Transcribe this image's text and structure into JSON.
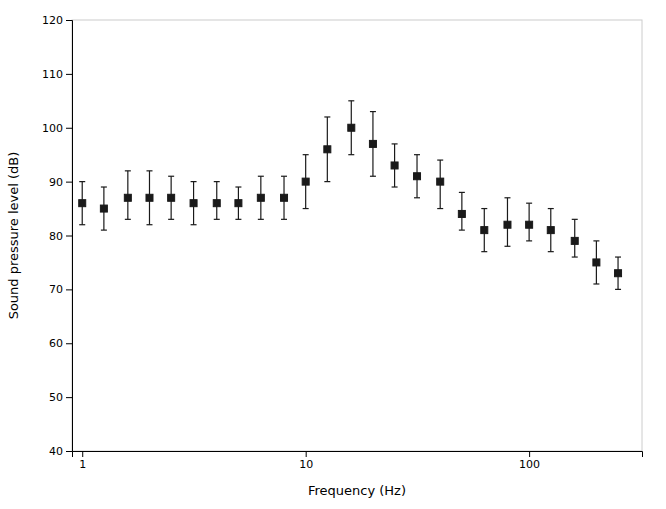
{
  "chart_data": {
    "type": "scatter",
    "xlabel": "Frequency (Hz)",
    "ylabel": "Sound pressure level (dB)",
    "x": [
      1,
      1.25,
      1.6,
      2,
      2.5,
      3.15,
      4,
      5,
      6.3,
      8,
      10,
      12.5,
      16,
      20,
      25,
      31.5,
      40,
      50,
      63,
      80,
      100,
      125,
      160,
      200,
      250
    ],
    "values": [
      86,
      85,
      87,
      87,
      87,
      86,
      86,
      86,
      87,
      87,
      90,
      96,
      100,
      97,
      93,
      91,
      90,
      84,
      81,
      82,
      82,
      81,
      79,
      75,
      73
    ],
    "yerr_lower": [
      4,
      4,
      4,
      5,
      4,
      4,
      3,
      3,
      4,
      4,
      5,
      6,
      5,
      6,
      4,
      4,
      5,
      3,
      4,
      4,
      3,
      4,
      3,
      4,
      3
    ],
    "yerr_upper": [
      4,
      4,
      5,
      5,
      4,
      4,
      4,
      3,
      4,
      4,
      5,
      6,
      5,
      6,
      4,
      4,
      4,
      4,
      4,
      5,
      4,
      4,
      4,
      4,
      3
    ],
    "color": "#1a1a1a",
    "marker": "square",
    "log": "x",
    "xlim": [
      0.9,
      320
    ],
    "xticks": [
      1,
      10,
      100
    ],
    "ylim": [
      40,
      120
    ],
    "yticks": [
      40,
      50,
      60,
      70,
      80,
      90,
      100,
      110,
      120
    ],
    "grid": false
  }
}
